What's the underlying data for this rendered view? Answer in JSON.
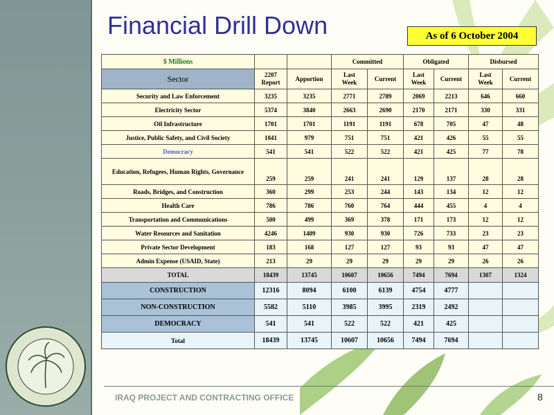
{
  "title": "Financial Drill Down",
  "as_of": "As of 6 October  2004",
  "table": {
    "millions_label": "$ Millions",
    "groups": [
      "Committed",
      "Obligated",
      "Disbursed"
    ],
    "sector_header": "Sector",
    "col_headers": [
      "2207\nReport",
      "Apportion",
      "Last\nWeek",
      "Current",
      "Last\nWeek",
      "Current",
      "Last\nWeek",
      "Current"
    ],
    "rows": [
      {
        "sector": "Security and Law Enforcement",
        "values": [
          "3235",
          "3235",
          "2771",
          "2789",
          "2069",
          "2213",
          "646",
          "660"
        ]
      },
      {
        "sector": "Electricity Sector",
        "values": [
          "5374",
          "3840",
          "2663",
          "2690",
          "2170",
          "2171",
          "330",
          "331"
        ]
      },
      {
        "sector": "Oil Infrastructure",
        "values": [
          "1701",
          "1701",
          "1191",
          "1191",
          "678",
          "705",
          "47",
          "48"
        ]
      },
      {
        "sector": "Justice, Public Safety, and Civil Society",
        "values": [
          "1041",
          "979",
          "751",
          "751",
          "421",
          "426",
          "55",
          "55"
        ]
      },
      {
        "sector": "Democracy",
        "values": [
          "541",
          "541",
          "522",
          "522",
          "421",
          "425",
          "77",
          "78"
        ]
      },
      {
        "sector": "Education, Refugees, Human Rights, Governance",
        "values": [
          "259",
          "259",
          "241",
          "241",
          "129",
          "137",
          "28",
          "28"
        ]
      },
      {
        "sector": "Roads, Bridges, and Construction",
        "values": [
          "360",
          "299",
          "253",
          "244",
          "143",
          "134",
          "12",
          "12"
        ]
      },
      {
        "sector": "Health Care",
        "values": [
          "786",
          "786",
          "760",
          "764",
          "444",
          "455",
          "4",
          "4"
        ]
      },
      {
        "sector": "Transportation and Communications",
        "values": [
          "500",
          "499",
          "369",
          "378",
          "171",
          "173",
          "12",
          "12"
        ]
      },
      {
        "sector": "Water Resources and Sanitation",
        "values": [
          "4246",
          "1409",
          "930",
          "930",
          "726",
          "733",
          "23",
          "23"
        ]
      },
      {
        "sector": "Private Sector Development",
        "values": [
          "183",
          "168",
          "127",
          "127",
          "93",
          "93",
          "47",
          "47"
        ]
      },
      {
        "sector": "Admin Expense (USAID, State)",
        "values": [
          "213",
          "29",
          "29",
          "29",
          "29",
          "29",
          "26",
          "26"
        ]
      }
    ],
    "total": {
      "label": "TOTAL",
      "values": [
        "18439",
        "13745",
        "10607",
        "10656",
        "7494",
        "7694",
        "1307",
        "1324"
      ]
    },
    "summary": [
      {
        "label": "CONSTRUCTION",
        "values": [
          "12316",
          "8094",
          "6100",
          "6139",
          "4754",
          "4777",
          "",
          ""
        ]
      },
      {
        "label": "NON-CONSTRUCTION",
        "values": [
          "5582",
          "5110",
          "3985",
          "3995",
          "2319",
          "2492",
          "",
          ""
        ]
      },
      {
        "label": "DEMOCRACY",
        "values": [
          "541",
          "541",
          "522",
          "522",
          "421",
          "425",
          "",
          ""
        ]
      },
      {
        "label": "Total",
        "values": [
          "18439",
          "13745",
          "10607",
          "10656",
          "7494",
          "7694",
          "",
          ""
        ]
      }
    ]
  },
  "footer": "IRAQ PROJECT AND CONTRACTING OFFICE",
  "page_number": "8",
  "seal_text": "IRAQ PROJECT AND CONTRACTING OFFICE",
  "colors": {
    "title": "#2f2f9a",
    "as_of_bg": "#ffff33",
    "sector_header_bg": "#9fb4c8",
    "highlight_sector": "#3a64c8"
  }
}
